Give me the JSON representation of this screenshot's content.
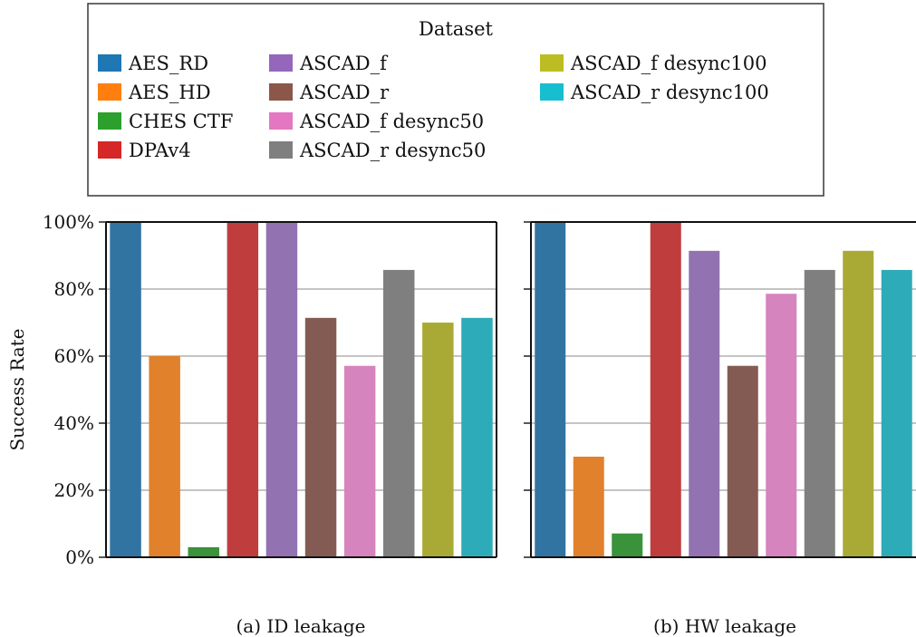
{
  "legend": {
    "title": "Dataset",
    "entries": [
      {
        "label": "AES_RD",
        "color": "#1f77b4"
      },
      {
        "label": "AES_HD",
        "color": "#ff7f0e"
      },
      {
        "label": "CHES CTF",
        "color": "#2ca02c"
      },
      {
        "label": "DPAv4",
        "color": "#d62728"
      },
      {
        "label": "ASCAD_f",
        "color": "#9467bd"
      },
      {
        "label": "ASCAD_r",
        "color": "#8c564b"
      },
      {
        "label": "ASCAD_f desync50",
        "color": "#e377c2"
      },
      {
        "label": "ASCAD_r desync50",
        "color": "#7f7f7f"
      },
      {
        "label": "ASCAD_f desync100",
        "color": "#bcbd22"
      },
      {
        "label": "ASCAD_r desync100",
        "color": "#17becf"
      }
    ]
  },
  "chart_data": [
    {
      "type": "bar",
      "caption": "(a) ID leakage",
      "ylabel": "Success Rate",
      "ylim": [
        0,
        100
      ],
      "yticks": [
        "0%",
        "20%",
        "40%",
        "60%",
        "80%",
        "100%"
      ],
      "grid": true,
      "categories": [
        "AES_RD",
        "AES_HD",
        "CHES CTF",
        "DPAv4",
        "ASCAD_f",
        "ASCAD_r",
        "ASCAD_f desync50",
        "ASCAD_r desync50",
        "ASCAD_f desync100",
        "ASCAD_r desync100"
      ],
      "values": [
        100,
        60,
        3,
        100,
        100,
        71.4,
        57.1,
        85.7,
        70,
        71.4
      ]
    },
    {
      "type": "bar",
      "caption": "(b) HW leakage",
      "ylabel": "",
      "ylim": [
        0,
        100
      ],
      "grid": true,
      "categories": [
        "AES_RD",
        "AES_HD",
        "CHES CTF",
        "DPAv4",
        "ASCAD_f",
        "ASCAD_r",
        "ASCAD_f desync50",
        "ASCAD_r desync50",
        "ASCAD_f desync100",
        "ASCAD_r desync100"
      ],
      "values": [
        100,
        30,
        7.1,
        100,
        91.4,
        57.1,
        78.6,
        85.7,
        91.4,
        85.7
      ]
    }
  ]
}
